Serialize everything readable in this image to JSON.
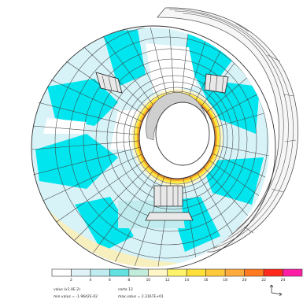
{
  "legend": {
    "tick_labels": [
      "2",
      "4",
      "6",
      "8",
      "10",
      "12",
      "14",
      "16",
      "18",
      "20",
      "22",
      "24"
    ],
    "bands": [
      {
        "color": "#ffffff"
      },
      {
        "color": "#dff3f7"
      },
      {
        "color": "#c0ecf0"
      },
      {
        "color": "#63e0e0"
      },
      {
        "color": "#c2ecdc"
      },
      {
        "color": "#fff7c8"
      },
      {
        "color": "#fff36a"
      },
      {
        "color": "#ffe038"
      },
      {
        "color": "#ffc93c"
      },
      {
        "color": "#ffaa3a"
      },
      {
        "color": "#ff7a1e"
      },
      {
        "color": "#ff2a1c"
      },
      {
        "color": "#ff1ea6"
      }
    ]
  },
  "info": {
    "line1_left": "valus  (x1.0E-2)",
    "line1_right": "carte  13",
    "line2_left": "min.valus = -1.9642E-02",
    "line2_right": "max.valus = 2.3167E+01"
  },
  "colors": {
    "white": "#ffffff",
    "light_cyan": "#d7f3f8",
    "cyan": "#00e5ee",
    "cream": "#f8efbe",
    "yellow": "#ffe63a",
    "orange": "#f3a52a",
    "red_brown": "#c8642c",
    "mesh": "#444444"
  }
}
